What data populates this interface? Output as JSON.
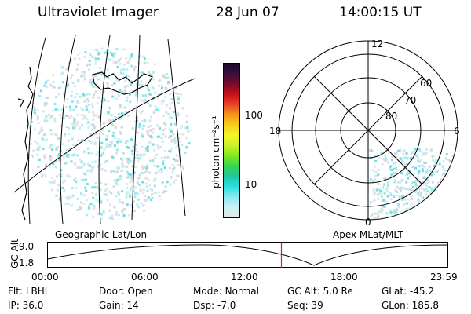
{
  "header": {
    "title": "Ultraviolet Imager",
    "date": "28 Jun 07",
    "time": "14:00:15 UT"
  },
  "colorbar": {
    "unit_label": "photon cm⁻²s⁻¹",
    "ticks": [
      "100",
      "10"
    ],
    "colors": [
      "#1a0a2a",
      "#3a0f3f",
      "#7a0b28",
      "#c8101a",
      "#e8432a",
      "#f39a1a",
      "#f7d01c",
      "#f5f52a",
      "#c8f228",
      "#7fe81f",
      "#37d44f",
      "#1ec8a0",
      "#2bdfe0",
      "#8ce9ef",
      "#c7f1f4",
      "#e6e6e6"
    ]
  },
  "geo_panel": {
    "label": "Geographic Lat/Lon"
  },
  "polar_panel": {
    "label": "Apex MLat/MLT",
    "mlt_labels": {
      "top": "12",
      "left": "18",
      "right": "6",
      "bottom": "0"
    },
    "lat_labels": [
      "60",
      "70",
      "80"
    ]
  },
  "altitude_plot": {
    "ylabel": "GC Alt",
    "yticks": [
      "9.0",
      "1.8"
    ],
    "xticks": [
      "00:00",
      "06:00",
      "12:00",
      "18:00",
      "23:59"
    ],
    "current_time_hours": 14.0
  },
  "info": {
    "row1": [
      {
        "label": "Flt:",
        "value": "LBHL"
      },
      {
        "label": "Door:",
        "value": "Open"
      },
      {
        "label": "Mode:",
        "value": "Normal"
      },
      {
        "label": "GC Alt:",
        "value": "5.0 Re"
      },
      {
        "label": "GLat:",
        "value": "-45.2"
      }
    ],
    "row2": [
      {
        "label": "IP:",
        "value": "36.0"
      },
      {
        "label": "Gain:",
        "value": "14"
      },
      {
        "label": "Dsp:",
        "value": "-7.0"
      },
      {
        "label": "Seq:",
        "value": "39"
      },
      {
        "label": "GLon:",
        "value": "185.8"
      }
    ]
  }
}
